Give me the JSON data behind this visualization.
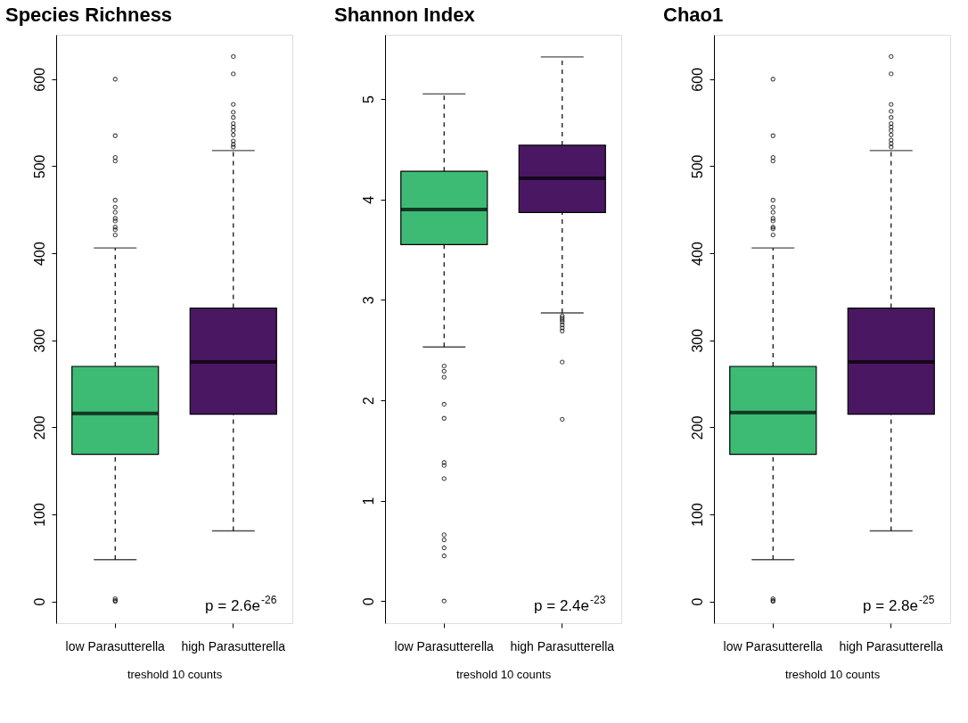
{
  "chart_data": [
    {
      "type": "box",
      "title": "Species Richness",
      "xlabel": "treshold 10 counts",
      "categories": [
        "low Parasutterella",
        "high Parasutterella"
      ],
      "colors": [
        "#3dbb75",
        "#4a1763"
      ],
      "boxes": [
        {
          "low": 48,
          "q1": 169,
          "median": 216,
          "q3": 270,
          "high": 406,
          "outliers": [
            600,
            535,
            510,
            506,
            461,
            453,
            447,
            440,
            437,
            430,
            427,
            421,
            3,
            1,
            0
          ]
        },
        {
          "low": 81,
          "q1": 215,
          "median": 275,
          "q3": 337,
          "high": 518,
          "outliers": [
            626,
            606,
            571,
            562,
            556,
            549,
            545,
            541,
            536,
            529,
            525,
            522
          ]
        }
      ],
      "ylim": [
        -25,
        651
      ],
      "yticks": [
        0,
        100,
        200,
        300,
        400,
        500,
        600
      ],
      "annotations": [
        "p = 2.6e$^{-26}$"
      ],
      "grid": false
    },
    {
      "type": "box",
      "title": "Shannon Index",
      "xlabel": "treshold 10 counts",
      "categories": [
        "low Parasutterella",
        "high Parasutterella"
      ],
      "colors": [
        "#3dbb75",
        "#4a1763"
      ],
      "boxes": [
        {
          "low": 2.53,
          "q1": 3.55,
          "median": 3.9,
          "q3": 4.28,
          "high": 5.05,
          "outliers": [
            2.34,
            2.29,
            2.23,
            1.96,
            1.82,
            1.38,
            1.35,
            1.22,
            0.66,
            0.61,
            0.53,
            0.45,
            0
          ]
        },
        {
          "low": 2.87,
          "q1": 3.87,
          "median": 4.21,
          "q3": 4.54,
          "high": 5.42,
          "outliers": [
            2.84,
            2.82,
            2.8,
            2.78,
            2.75,
            2.72,
            2.69,
            2.38,
            1.81
          ]
        }
      ],
      "ylim": [
        -0.22,
        5.64
      ],
      "yticks": [
        0,
        1,
        2,
        3,
        4,
        5
      ],
      "annotations": [
        "p = 2.4e$^{-23}$"
      ],
      "grid": false
    },
    {
      "type": "box",
      "title": "Chao1",
      "xlabel": "treshold 10 counts",
      "categories": [
        "low Parasutterella",
        "high Parasutterella"
      ],
      "colors": [
        "#3dbb75",
        "#4a1763"
      ],
      "boxes": [
        {
          "low": 48,
          "q1": 169,
          "median": 217,
          "q3": 270,
          "high": 406,
          "outliers": [
            600,
            535,
            510,
            506,
            461,
            453,
            447,
            440,
            437,
            430,
            428,
            421,
            3,
            1,
            0
          ]
        },
        {
          "low": 81,
          "q1": 215,
          "median": 275,
          "q3": 337,
          "high": 518,
          "outliers": [
            626,
            606,
            571,
            563,
            556,
            549,
            545,
            541,
            536,
            530,
            526,
            522
          ]
        }
      ],
      "ylim": [
        -25,
        651
      ],
      "yticks": [
        0,
        100,
        200,
        300,
        400,
        500,
        600
      ],
      "annotations": [
        "p = 2.8e$^{-25}$"
      ],
      "grid": false
    }
  ]
}
